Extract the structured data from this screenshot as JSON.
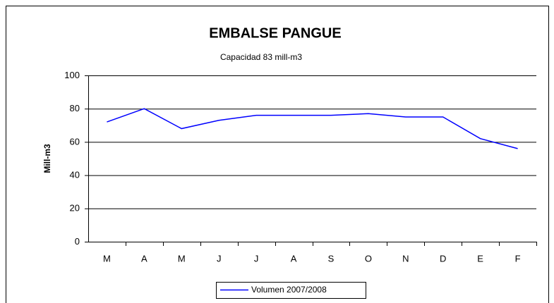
{
  "chart_data": {
    "type": "line",
    "title": "EMBALSE PANGUE",
    "subtitle": "Capacidad  83 mill-m3",
    "y_label": "Mill-m3",
    "categories": [
      "M",
      "A",
      "M",
      "J",
      "J",
      "A",
      "S",
      "O",
      "N",
      "D",
      "E",
      "F"
    ],
    "series": [
      {
        "name": "Volumen  2007/2008",
        "color": "#0000ff",
        "values": [
          72,
          80,
          68,
          73,
          76,
          76,
          76,
          77,
          75,
          75,
          62,
          56
        ]
      }
    ],
    "ylim": [
      0,
      100
    ],
    "yticks": [
      0,
      20,
      40,
      60,
      80,
      100
    ],
    "grid": true
  }
}
